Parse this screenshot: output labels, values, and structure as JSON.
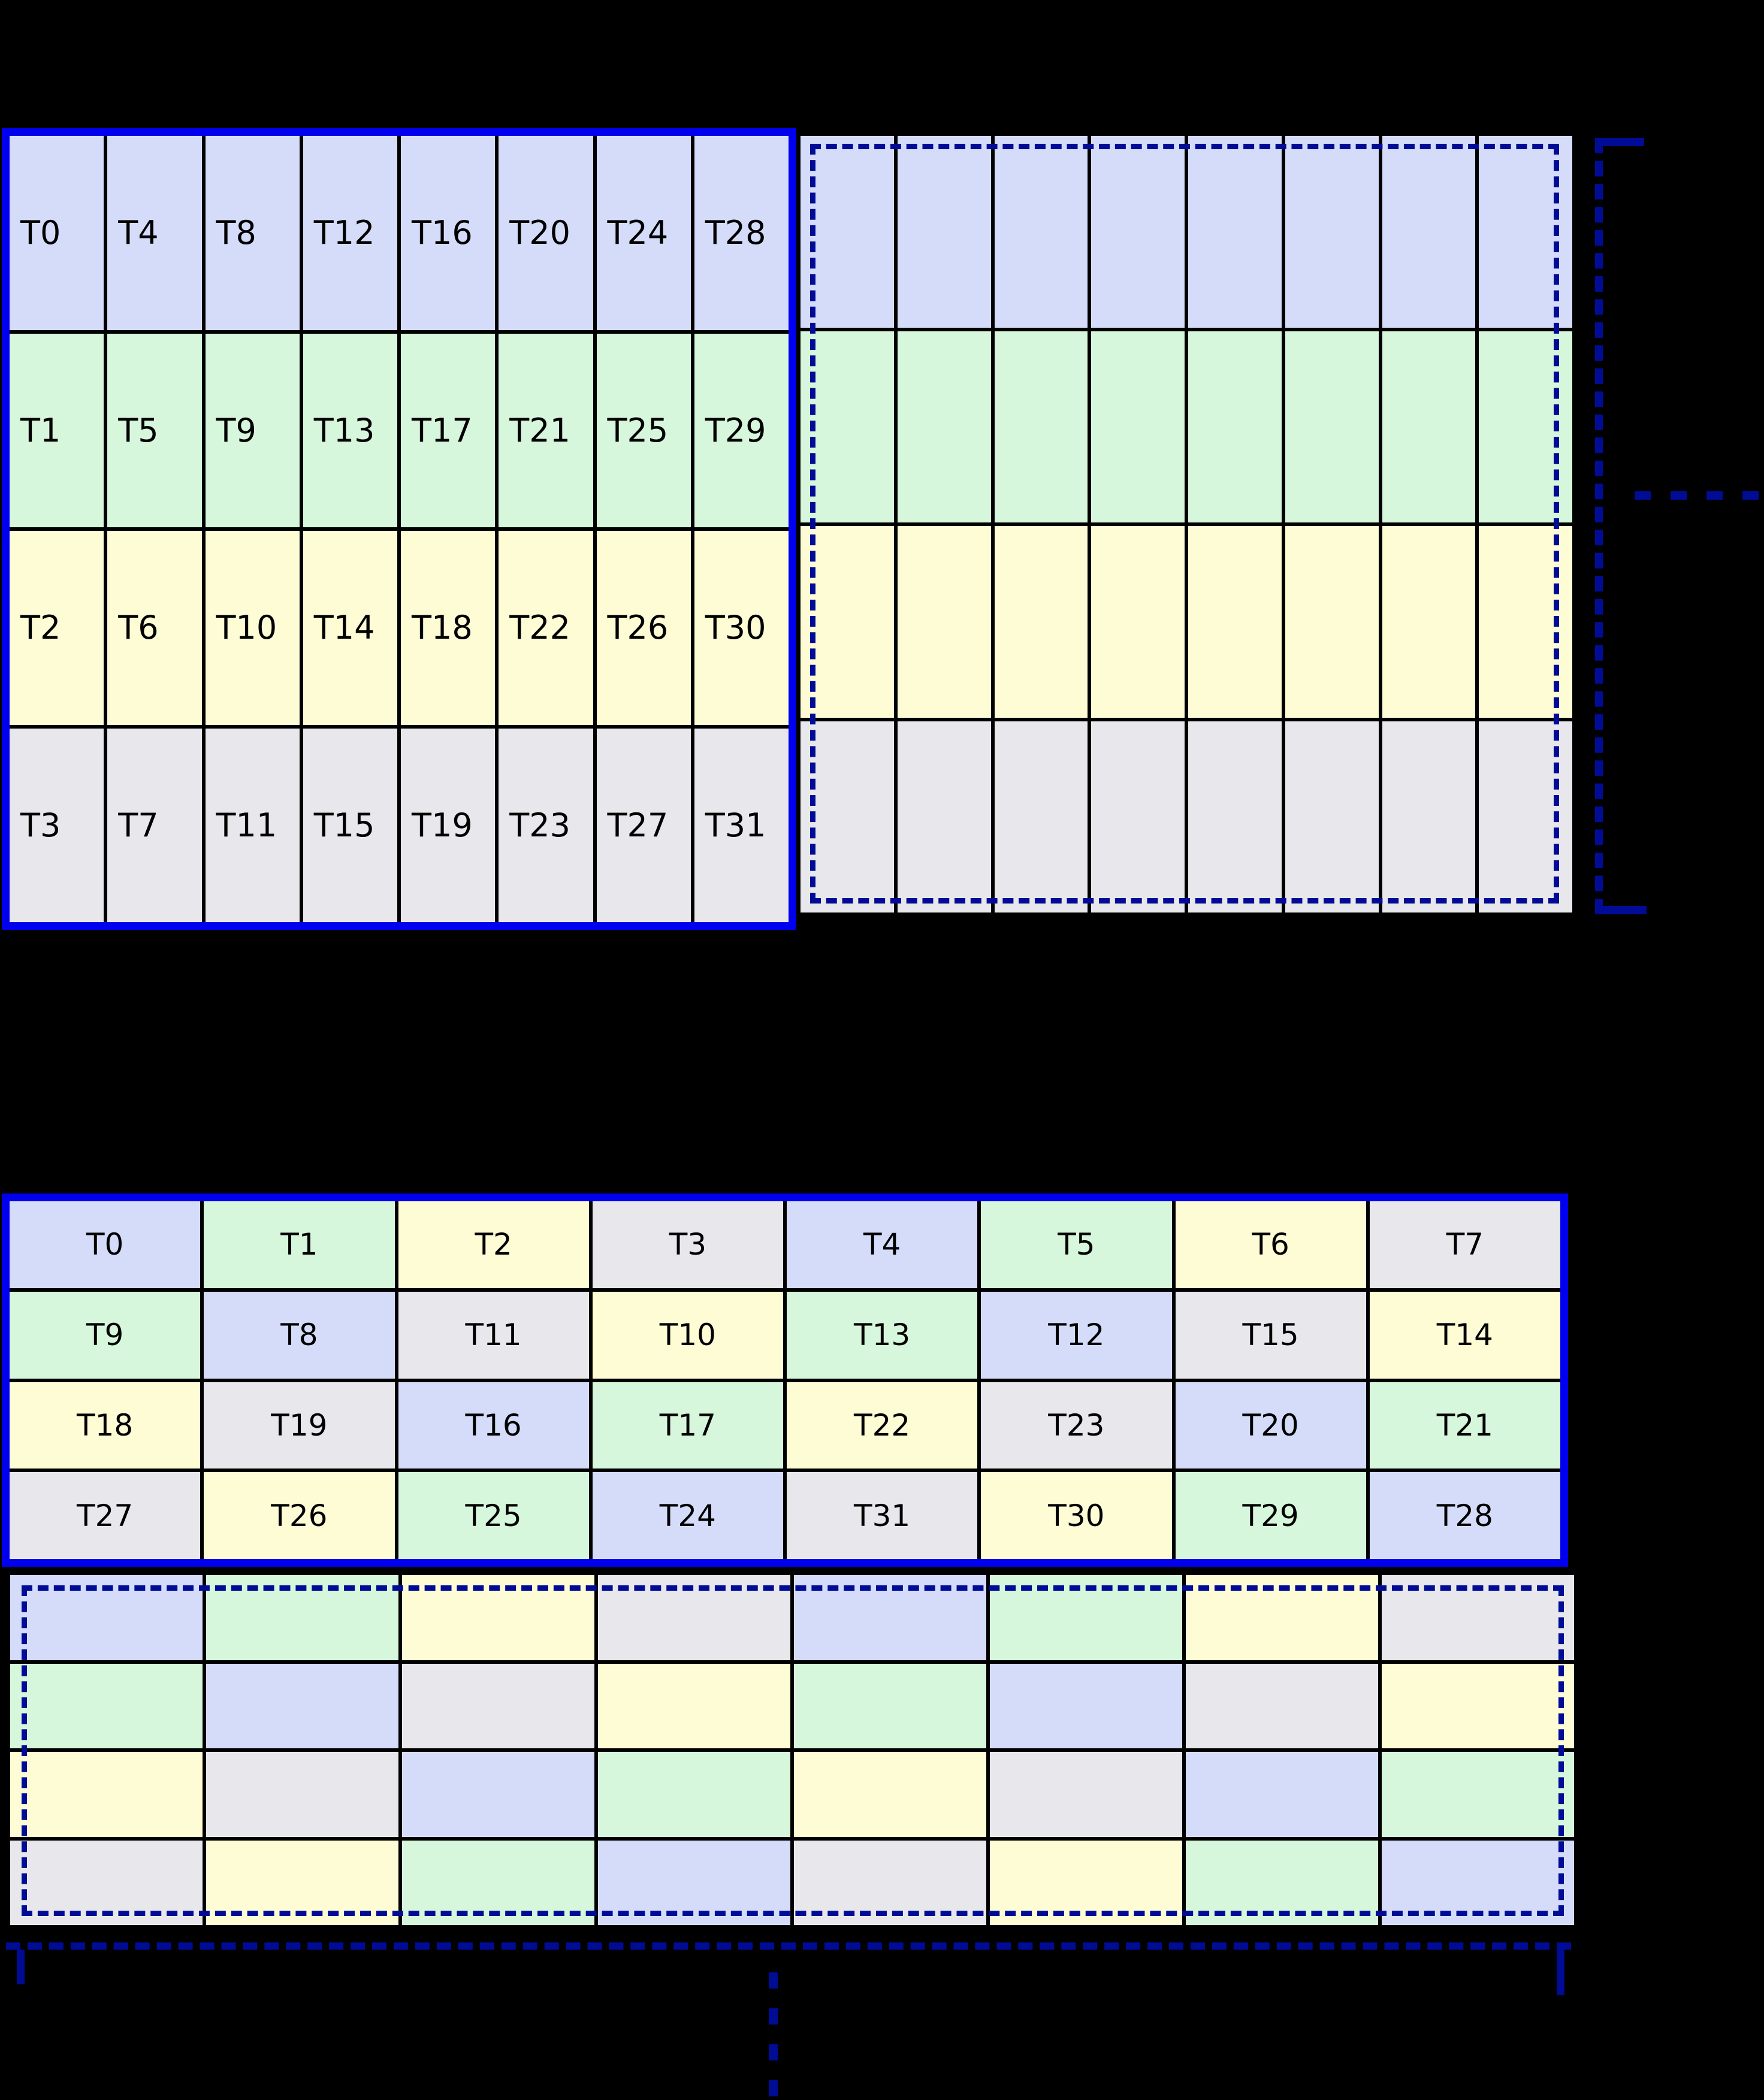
{
  "palette": {
    "mod_colors": [
      "#d5dcfa",
      "#d7f7dd",
      "#fdfcd5",
      "#e8e8ec"
    ],
    "frame_blue": "#0000ee",
    "dashed_navy": "#000c96",
    "grid_line": "#000000",
    "background": "#000000"
  },
  "top_figure": {
    "labeled_rows": [
      [
        "T0",
        "T4",
        "T8",
        "T12",
        "T16",
        "T20",
        "T24",
        "T28"
      ],
      [
        "T1",
        "T5",
        "T9",
        "T13",
        "T17",
        "T21",
        "T25",
        "T29"
      ],
      [
        "T2",
        "T6",
        "T10",
        "T14",
        "T18",
        "T22",
        "T26",
        "T30"
      ],
      [
        "T3",
        "T7",
        "T11",
        "T15",
        "T19",
        "T23",
        "T27",
        "T31"
      ]
    ],
    "echo_mod_rows": [
      [
        0,
        0,
        0,
        0,
        0,
        0,
        0,
        0
      ],
      [
        1,
        1,
        1,
        1,
        1,
        1,
        1,
        1
      ],
      [
        2,
        2,
        2,
        2,
        2,
        2,
        2,
        2
      ],
      [
        3,
        3,
        3,
        3,
        3,
        3,
        3,
        3
      ]
    ],
    "h_ellipsis_dot_count": 4
  },
  "bottom_figure": {
    "labeled_rows": [
      [
        "T0",
        "T1",
        "T2",
        "T3",
        "T4",
        "T5",
        "T6",
        "T7"
      ],
      [
        "T9",
        "T8",
        "T11",
        "T10",
        "T13",
        "T12",
        "T15",
        "T14"
      ],
      [
        "T18",
        "T19",
        "T16",
        "T17",
        "T22",
        "T23",
        "T20",
        "T21"
      ],
      [
        "T27",
        "T26",
        "T25",
        "T24",
        "T31",
        "T30",
        "T29",
        "T28"
      ]
    ],
    "echo_mod_rows": [
      [
        0,
        1,
        2,
        3,
        0,
        1,
        2,
        3
      ],
      [
        1,
        0,
        3,
        2,
        1,
        0,
        3,
        2
      ],
      [
        2,
        3,
        0,
        1,
        2,
        3,
        0,
        1
      ],
      [
        3,
        2,
        1,
        0,
        3,
        2,
        1,
        0
      ]
    ],
    "v_ellipsis_dot_count": 4
  }
}
